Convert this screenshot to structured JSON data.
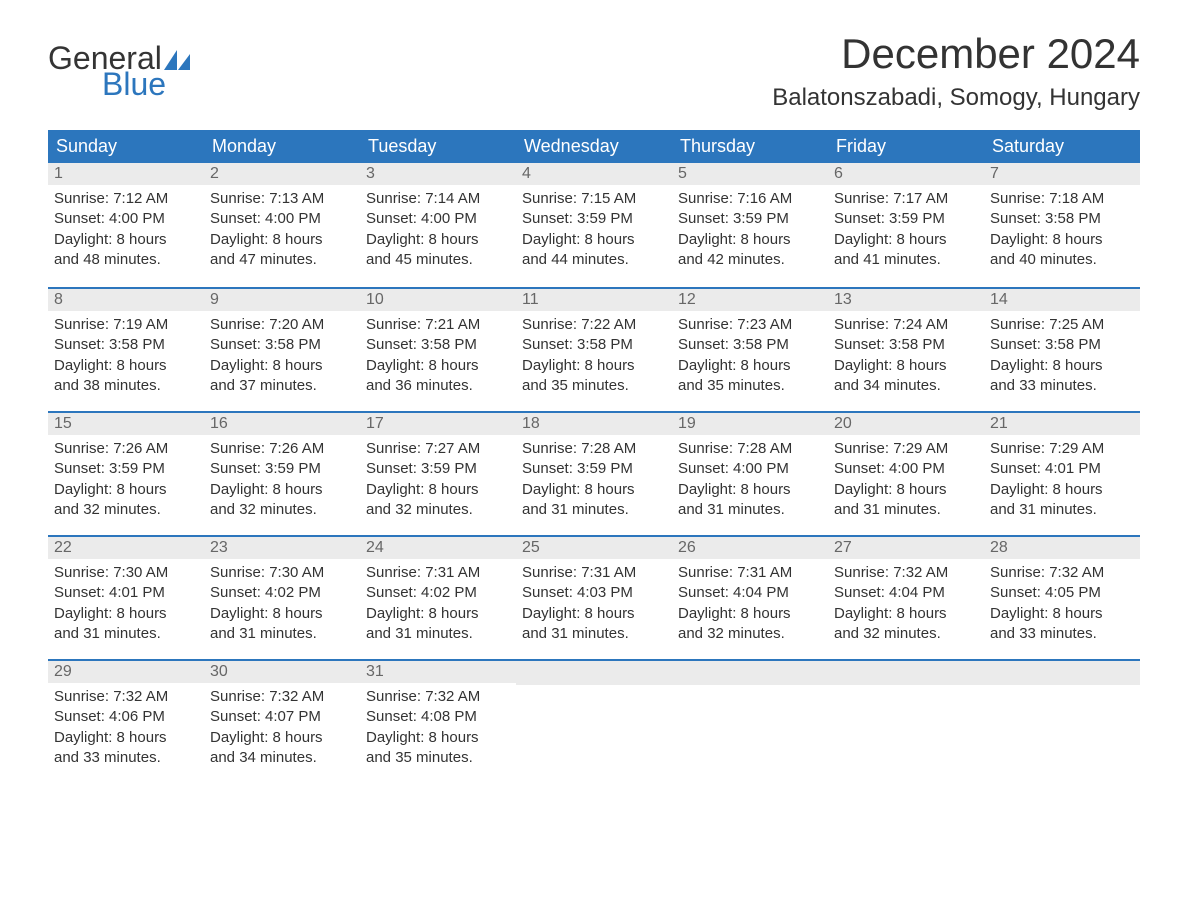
{
  "logo": {
    "word1": "General",
    "word2": "Blue",
    "accent_color": "#2c76bd",
    "text_color": "#343434"
  },
  "title": "December 2024",
  "location": "Balatonszabadi, Somogy, Hungary",
  "colors": {
    "header_bg": "#2c76bd",
    "header_text": "#ffffff",
    "daynum_bg": "#ebebeb",
    "daynum_text": "#676767",
    "body_text": "#333333",
    "week_divider": "#2c76bd"
  },
  "day_names": [
    "Sunday",
    "Monday",
    "Tuesday",
    "Wednesday",
    "Thursday",
    "Friday",
    "Saturday"
  ],
  "labels": {
    "sunrise": "Sunrise:",
    "sunset": "Sunset:",
    "daylight": "Daylight:"
  },
  "weeks": [
    [
      {
        "n": "1",
        "sunrise": "7:12 AM",
        "sunset": "4:00 PM",
        "daylight1": "8 hours",
        "daylight2": "and 48 minutes."
      },
      {
        "n": "2",
        "sunrise": "7:13 AM",
        "sunset": "4:00 PM",
        "daylight1": "8 hours",
        "daylight2": "and 47 minutes."
      },
      {
        "n": "3",
        "sunrise": "7:14 AM",
        "sunset": "4:00 PM",
        "daylight1": "8 hours",
        "daylight2": "and 45 minutes."
      },
      {
        "n": "4",
        "sunrise": "7:15 AM",
        "sunset": "3:59 PM",
        "daylight1": "8 hours",
        "daylight2": "and 44 minutes."
      },
      {
        "n": "5",
        "sunrise": "7:16 AM",
        "sunset": "3:59 PM",
        "daylight1": "8 hours",
        "daylight2": "and 42 minutes."
      },
      {
        "n": "6",
        "sunrise": "7:17 AM",
        "sunset": "3:59 PM",
        "daylight1": "8 hours",
        "daylight2": "and 41 minutes."
      },
      {
        "n": "7",
        "sunrise": "7:18 AM",
        "sunset": "3:58 PM",
        "daylight1": "8 hours",
        "daylight2": "and 40 minutes."
      }
    ],
    [
      {
        "n": "8",
        "sunrise": "7:19 AM",
        "sunset": "3:58 PM",
        "daylight1": "8 hours",
        "daylight2": "and 38 minutes."
      },
      {
        "n": "9",
        "sunrise": "7:20 AM",
        "sunset": "3:58 PM",
        "daylight1": "8 hours",
        "daylight2": "and 37 minutes."
      },
      {
        "n": "10",
        "sunrise": "7:21 AM",
        "sunset": "3:58 PM",
        "daylight1": "8 hours",
        "daylight2": "and 36 minutes."
      },
      {
        "n": "11",
        "sunrise": "7:22 AM",
        "sunset": "3:58 PM",
        "daylight1": "8 hours",
        "daylight2": "and 35 minutes."
      },
      {
        "n": "12",
        "sunrise": "7:23 AM",
        "sunset": "3:58 PM",
        "daylight1": "8 hours",
        "daylight2": "and 35 minutes."
      },
      {
        "n": "13",
        "sunrise": "7:24 AM",
        "sunset": "3:58 PM",
        "daylight1": "8 hours",
        "daylight2": "and 34 minutes."
      },
      {
        "n": "14",
        "sunrise": "7:25 AM",
        "sunset": "3:58 PM",
        "daylight1": "8 hours",
        "daylight2": "and 33 minutes."
      }
    ],
    [
      {
        "n": "15",
        "sunrise": "7:26 AM",
        "sunset": "3:59 PM",
        "daylight1": "8 hours",
        "daylight2": "and 32 minutes."
      },
      {
        "n": "16",
        "sunrise": "7:26 AM",
        "sunset": "3:59 PM",
        "daylight1": "8 hours",
        "daylight2": "and 32 minutes."
      },
      {
        "n": "17",
        "sunrise": "7:27 AM",
        "sunset": "3:59 PM",
        "daylight1": "8 hours",
        "daylight2": "and 32 minutes."
      },
      {
        "n": "18",
        "sunrise": "7:28 AM",
        "sunset": "3:59 PM",
        "daylight1": "8 hours",
        "daylight2": "and 31 minutes."
      },
      {
        "n": "19",
        "sunrise": "7:28 AM",
        "sunset": "4:00 PM",
        "daylight1": "8 hours",
        "daylight2": "and 31 minutes."
      },
      {
        "n": "20",
        "sunrise": "7:29 AM",
        "sunset": "4:00 PM",
        "daylight1": "8 hours",
        "daylight2": "and 31 minutes."
      },
      {
        "n": "21",
        "sunrise": "7:29 AM",
        "sunset": "4:01 PM",
        "daylight1": "8 hours",
        "daylight2": "and 31 minutes."
      }
    ],
    [
      {
        "n": "22",
        "sunrise": "7:30 AM",
        "sunset": "4:01 PM",
        "daylight1": "8 hours",
        "daylight2": "and 31 minutes."
      },
      {
        "n": "23",
        "sunrise": "7:30 AM",
        "sunset": "4:02 PM",
        "daylight1": "8 hours",
        "daylight2": "and 31 minutes."
      },
      {
        "n": "24",
        "sunrise": "7:31 AM",
        "sunset": "4:02 PM",
        "daylight1": "8 hours",
        "daylight2": "and 31 minutes."
      },
      {
        "n": "25",
        "sunrise": "7:31 AM",
        "sunset": "4:03 PM",
        "daylight1": "8 hours",
        "daylight2": "and 31 minutes."
      },
      {
        "n": "26",
        "sunrise": "7:31 AM",
        "sunset": "4:04 PM",
        "daylight1": "8 hours",
        "daylight2": "and 32 minutes."
      },
      {
        "n": "27",
        "sunrise": "7:32 AM",
        "sunset": "4:04 PM",
        "daylight1": "8 hours",
        "daylight2": "and 32 minutes."
      },
      {
        "n": "28",
        "sunrise": "7:32 AM",
        "sunset": "4:05 PM",
        "daylight1": "8 hours",
        "daylight2": "and 33 minutes."
      }
    ],
    [
      {
        "n": "29",
        "sunrise": "7:32 AM",
        "sunset": "4:06 PM",
        "daylight1": "8 hours",
        "daylight2": "and 33 minutes."
      },
      {
        "n": "30",
        "sunrise": "7:32 AM",
        "sunset": "4:07 PM",
        "daylight1": "8 hours",
        "daylight2": "and 34 minutes."
      },
      {
        "n": "31",
        "sunrise": "7:32 AM",
        "sunset": "4:08 PM",
        "daylight1": "8 hours",
        "daylight2": "and 35 minutes."
      },
      null,
      null,
      null,
      null
    ]
  ]
}
